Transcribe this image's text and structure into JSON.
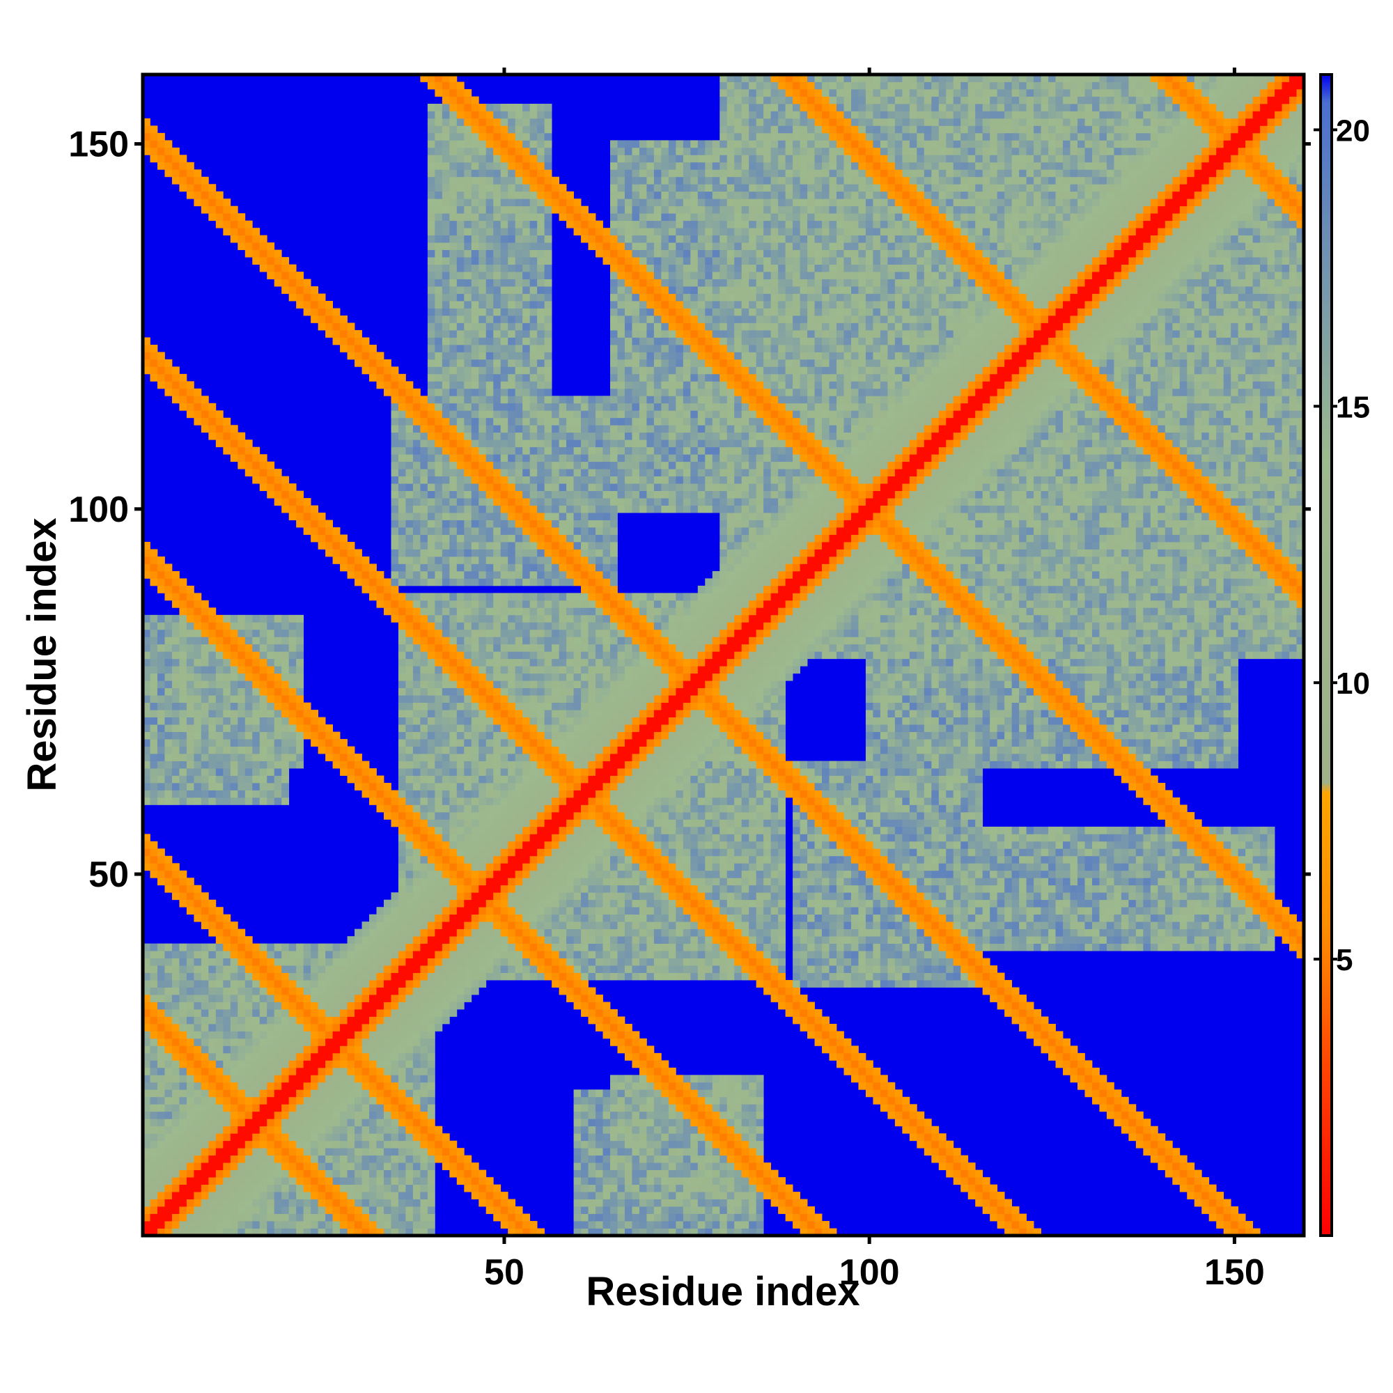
{
  "chart_data": {
    "type": "heatmap",
    "title": "",
    "xlabel": "Residue index",
    "ylabel": "Residue index",
    "xlim": [
      1,
      159
    ],
    "ylim": [
      1,
      159
    ],
    "x_ticks": [
      50,
      100,
      150
    ],
    "y_ticks": [
      50,
      100,
      150
    ],
    "colorbar": {
      "ticks": [
        5,
        10,
        15,
        20
      ],
      "range": [
        0,
        21
      ],
      "stops": [
        {
          "value": 0,
          "color": "#ff0000"
        },
        {
          "value": 3,
          "color": "#ff4400"
        },
        {
          "value": 5.5,
          "color": "#ff8c00"
        },
        {
          "value": 8,
          "color": "#ffa500"
        },
        {
          "value": 8.2,
          "color": "#9fb08a"
        },
        {
          "value": 14,
          "color": "#9db98e"
        },
        {
          "value": 18,
          "color": "#6d8fb3"
        },
        {
          "value": 20.5,
          "color": "#4a6fd0"
        },
        {
          "value": 21,
          "color": "#0000f0"
        }
      ]
    },
    "background_color": "#0000ee",
    "contact_features": [
      {
        "type": "diagonal",
        "start": 1,
        "end": 159
      },
      {
        "type": "antiparallel",
        "center": [
          16,
          16
        ],
        "half_length": 8
      },
      {
        "type": "antiparallel",
        "center": [
          27,
          27
        ],
        "half_length": 6
      },
      {
        "type": "antiparallel",
        "center": [
          47,
          47
        ],
        "half_length": 10
      },
      {
        "type": "antiparallel",
        "center": [
          61,
          61
        ],
        "half_length": 4
      },
      {
        "type": "antiparallel",
        "center": [
          76,
          76
        ],
        "half_length": 12
      },
      {
        "type": "antiparallel",
        "center": [
          100,
          100
        ],
        "half_length": 12
      },
      {
        "type": "antiparallel",
        "center": [
          124,
          124
        ],
        "half_length": 8
      },
      {
        "type": "antiparallel",
        "center": [
          150,
          150
        ],
        "half_length": 5
      },
      {
        "type": "block",
        "x": [
          1,
          40
        ],
        "y": [
          1,
          40
        ],
        "level": 12
      },
      {
        "type": "block",
        "x": [
          36,
          88
        ],
        "y": [
          36,
          88
        ],
        "level": 12
      },
      {
        "type": "block",
        "x": [
          80,
          159
        ],
        "y": [
          80,
          159
        ],
        "level": 12
      },
      {
        "type": "block",
        "x": [
          5,
          22
        ],
        "y": [
          65,
          85
        ],
        "level": 12
      },
      {
        "type": "block",
        "x": [
          40,
          56
        ],
        "y": [
          100,
          155
        ],
        "level": 13
      },
      {
        "type": "block",
        "x": [
          65,
          80
        ],
        "y": [
          100,
          150
        ],
        "level": 13
      },
      {
        "type": "block",
        "x": [
          90,
          115
        ],
        "y": [
          35,
          65
        ],
        "level": 13
      },
      {
        "type": "block",
        "x": [
          140,
          155
        ],
        "y": [
          40,
          55
        ],
        "level": 12
      },
      {
        "type": "block",
        "x": [
          110,
          130
        ],
        "y": [
          40,
          55
        ],
        "level": 13
      },
      {
        "type": "block",
        "x": [
          60,
          85
        ],
        "y": [
          1,
          20
        ],
        "level": 13
      }
    ]
  }
}
